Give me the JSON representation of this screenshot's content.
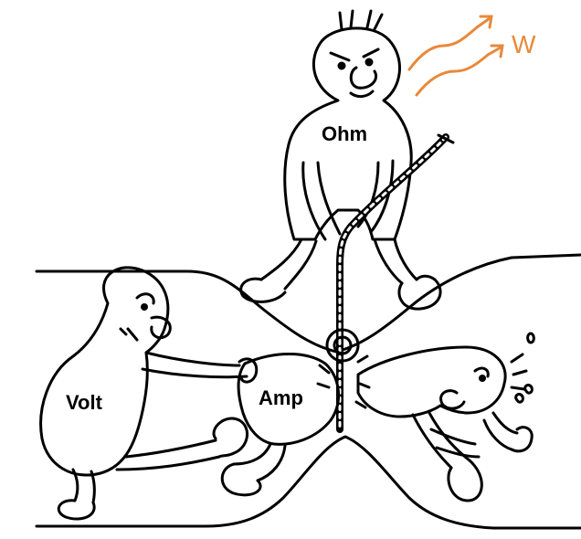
{
  "labels": {
    "ohm": "Ohm",
    "volt": "Volt",
    "amp": "Amp",
    "power": "W"
  },
  "colors": {
    "ink": "#000000",
    "paper": "#ffffff",
    "heat": "#e8893a"
  }
}
